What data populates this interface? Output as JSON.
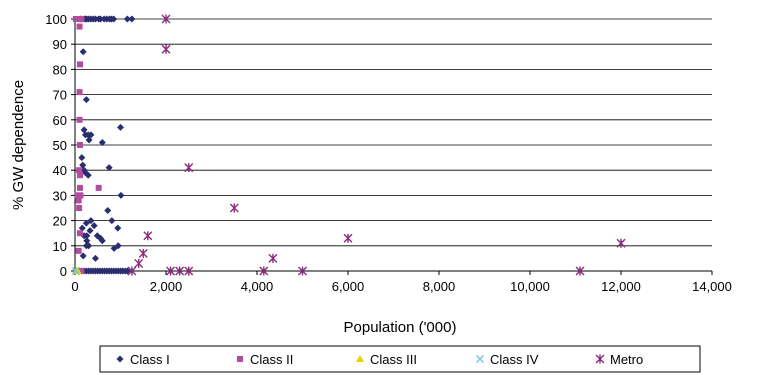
{
  "chart_data": {
    "type": "scatter",
    "title": "",
    "xlabel": "Population ('000)",
    "ylabel": "% GW dependence",
    "xlim": [
      0,
      14000
    ],
    "ylim": [
      0,
      100
    ],
    "xticks": [
      0,
      2000,
      4000,
      6000,
      8000,
      10000,
      12000,
      14000
    ],
    "xtick_labels": [
      "0",
      "2,000",
      "4,000",
      "6,000",
      "8,000",
      "10,000",
      "12,000",
      "14,000"
    ],
    "yticks": [
      0,
      10,
      20,
      30,
      40,
      50,
      60,
      70,
      80,
      90,
      100
    ],
    "ytick_labels": [
      "0",
      "10",
      "20",
      "30",
      "40",
      "50",
      "60",
      "70",
      "80",
      "90",
      "100"
    ],
    "grid": "horizontal",
    "legend_position": "bottom",
    "series": [
      {
        "name": "Class I",
        "color": "#2a2e6e",
        "marker": "diamond",
        "points": [
          [
            120,
            100
          ],
          [
            160,
            100
          ],
          [
            200,
            100
          ],
          [
            230,
            100
          ],
          [
            260,
            100
          ],
          [
            300,
            100
          ],
          [
            350,
            100
          ],
          [
            400,
            100
          ],
          [
            450,
            100
          ],
          [
            520,
            100
          ],
          [
            560,
            100
          ],
          [
            640,
            100
          ],
          [
            700,
            100
          ],
          [
            760,
            100
          ],
          [
            800,
            100
          ],
          [
            850,
            100
          ],
          [
            1150,
            100
          ],
          [
            1250,
            100
          ],
          [
            180,
            87
          ],
          [
            250,
            68
          ],
          [
            1000,
            57
          ],
          [
            200,
            56
          ],
          [
            230,
            54
          ],
          [
            290,
            54
          ],
          [
            350,
            54
          ],
          [
            310,
            52
          ],
          [
            600,
            51
          ],
          [
            150,
            45
          ],
          [
            170,
            42
          ],
          [
            750,
            41
          ],
          [
            200,
            40
          ],
          [
            230,
            39
          ],
          [
            290,
            38
          ],
          [
            1010,
            30
          ],
          [
            720,
            24
          ],
          [
            350,
            20
          ],
          [
            250,
            19
          ],
          [
            810,
            20
          ],
          [
            420,
            18
          ],
          [
            160,
            17
          ],
          [
            940,
            17
          ],
          [
            330,
            16
          ],
          [
            200,
            14
          ],
          [
            260,
            14
          ],
          [
            490,
            14
          ],
          [
            560,
            13
          ],
          [
            600,
            12
          ],
          [
            260,
            12
          ],
          [
            250,
            10
          ],
          [
            300,
            10
          ],
          [
            860,
            9
          ],
          [
            950,
            10
          ],
          [
            180,
            6
          ],
          [
            450,
            5
          ],
          [
            100,
            0
          ],
          [
            150,
            0
          ],
          [
            200,
            0
          ],
          [
            250,
            0
          ],
          [
            300,
            0
          ],
          [
            350,
            0
          ],
          [
            400,
            0
          ],
          [
            450,
            0
          ],
          [
            500,
            0
          ],
          [
            550,
            0
          ],
          [
            600,
            0
          ],
          [
            650,
            0
          ],
          [
            700,
            0
          ],
          [
            750,
            0
          ],
          [
            800,
            0
          ],
          [
            850,
            0
          ],
          [
            900,
            0
          ],
          [
            950,
            0
          ],
          [
            1000,
            0
          ],
          [
            1050,
            0
          ],
          [
            1100,
            0
          ],
          [
            1150,
            0
          ]
        ]
      },
      {
        "name": "Class II",
        "color": "#b34c9e",
        "marker": "square",
        "points": [
          [
            20,
            100
          ],
          [
            40,
            100
          ],
          [
            60,
            100
          ],
          [
            80,
            100
          ],
          [
            100,
            100
          ],
          [
            120,
            100
          ],
          [
            140,
            100
          ],
          [
            100,
            97
          ],
          [
            110,
            82
          ],
          [
            100,
            71
          ],
          [
            100,
            60
          ],
          [
            110,
            50
          ],
          [
            90,
            40
          ],
          [
            110,
            38
          ],
          [
            520,
            33
          ],
          [
            110,
            33
          ],
          [
            60,
            30
          ],
          [
            90,
            30
          ],
          [
            120,
            30
          ],
          [
            80,
            28
          ],
          [
            90,
            25
          ],
          [
            110,
            15
          ],
          [
            80,
            8
          ],
          [
            20,
            0
          ],
          [
            50,
            0
          ],
          [
            80,
            0
          ],
          [
            110,
            0
          ],
          [
            140,
            0
          ]
        ]
      },
      {
        "name": "Class III",
        "color": "#e8d400",
        "marker": "triangle",
        "points": [
          [
            30,
            0
          ],
          [
            60,
            0
          ]
        ]
      },
      {
        "name": "Class IV",
        "color": "#6fc6d9",
        "marker": "x",
        "points": [
          [
            15,
            0
          ]
        ]
      },
      {
        "name": "Metro",
        "color": "#8b2a7e",
        "marker": "star",
        "points": [
          [
            2000,
            100
          ],
          [
            2000,
            88
          ],
          [
            2500,
            41
          ],
          [
            3500,
            25
          ],
          [
            6000,
            13
          ],
          [
            12000,
            11
          ],
          [
            1600,
            14
          ],
          [
            1500,
            7
          ],
          [
            1400,
            3
          ],
          [
            4350,
            5
          ],
          [
            1250,
            0
          ],
          [
            2100,
            0
          ],
          [
            2300,
            0
          ],
          [
            2500,
            0
          ],
          [
            4150,
            0
          ],
          [
            5000,
            0
          ],
          [
            11100,
            0
          ]
        ]
      }
    ]
  }
}
